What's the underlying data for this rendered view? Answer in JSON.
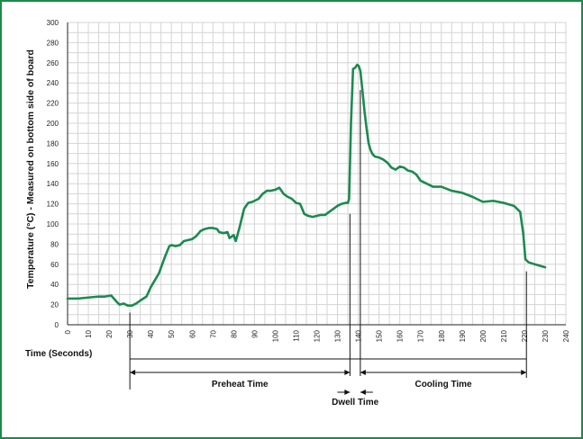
{
  "colors": {
    "frame": "#1a8a4a",
    "line": "#1b8a4f",
    "grid": "#d4d4d4",
    "axis": "#222222"
  },
  "chart_data": {
    "type": "line",
    "title": "",
    "xlabel": "Time (Seconds)",
    "ylabel": "Temperature (°C) - Measured on bottom side of board",
    "xlim": [
      0,
      240
    ],
    "ylim": [
      0,
      300
    ],
    "x_ticks": [
      0,
      10,
      20,
      30,
      40,
      50,
      60,
      70,
      80,
      90,
      100,
      110,
      120,
      130,
      140,
      150,
      160,
      170,
      180,
      190,
      200,
      210,
      220,
      230,
      240
    ],
    "y_ticks": [
      0,
      20,
      40,
      60,
      80,
      100,
      120,
      140,
      160,
      180,
      200,
      220,
      240,
      260,
      280,
      300
    ],
    "grid": true,
    "legend": "none",
    "series": [
      {
        "x": [
          0,
          5,
          10,
          15,
          18,
          21,
          24,
          25,
          27,
          29,
          31,
          33,
          35,
          38,
          40,
          42,
          44,
          47,
          49,
          50,
          52,
          54,
          56,
          58,
          60,
          62,
          64,
          66,
          68,
          70,
          72,
          73,
          75,
          77,
          78,
          80,
          81,
          83,
          85,
          87,
          89,
          90,
          92,
          94,
          96,
          98,
          100,
          102,
          104,
          106,
          108,
          110,
          112,
          114,
          116,
          118,
          120,
          122,
          124,
          126,
          128,
          130,
          132,
          134,
          135,
          135.6,
          136.5,
          137.5,
          138.5,
          139.5,
          140.2,
          141,
          142,
          143,
          144,
          145,
          146,
          147,
          148,
          150,
          152,
          154,
          156,
          158,
          160,
          162,
          164,
          166,
          168,
          170,
          172,
          174,
          176,
          178,
          180,
          185,
          190,
          195,
          200,
          205,
          210,
          215,
          218,
          219.5,
          220.5,
          222,
          225,
          230
        ],
        "values": [
          26,
          26,
          27,
          28,
          28,
          29,
          22,
          20,
          21,
          19,
          19,
          21,
          24,
          28,
          37,
          44,
          51,
          68,
          78,
          79,
          78,
          79,
          83,
          84,
          85,
          88,
          93,
          95,
          96,
          96,
          95,
          92,
          91,
          92,
          86,
          89,
          83,
          98,
          115,
          121,
          122,
          123,
          125,
          130,
          133,
          133,
          134,
          136,
          130,
          127,
          125,
          121,
          120,
          110,
          108,
          107,
          108,
          109,
          109,
          112,
          115,
          118,
          120,
          121,
          121,
          125,
          200,
          254,
          255,
          258,
          257,
          252,
          233,
          212,
          195,
          180,
          173,
          169,
          167,
          166,
          164,
          161,
          156,
          154,
          157,
          156,
          153,
          152,
          149,
          143,
          141,
          139,
          137,
          137,
          137,
          133,
          131,
          127,
          122,
          123,
          121,
          118,
          112,
          90,
          65,
          62,
          60,
          57
        ]
      }
    ],
    "annotations": {
      "preheat": {
        "label": "Preheat Time",
        "from": 30,
        "to": 136
      },
      "dwell": {
        "label": "Dwell Time",
        "from": 136,
        "to": 141
      },
      "cooling": {
        "label": "Cooling Time",
        "from": 141,
        "to": 221
      }
    }
  }
}
